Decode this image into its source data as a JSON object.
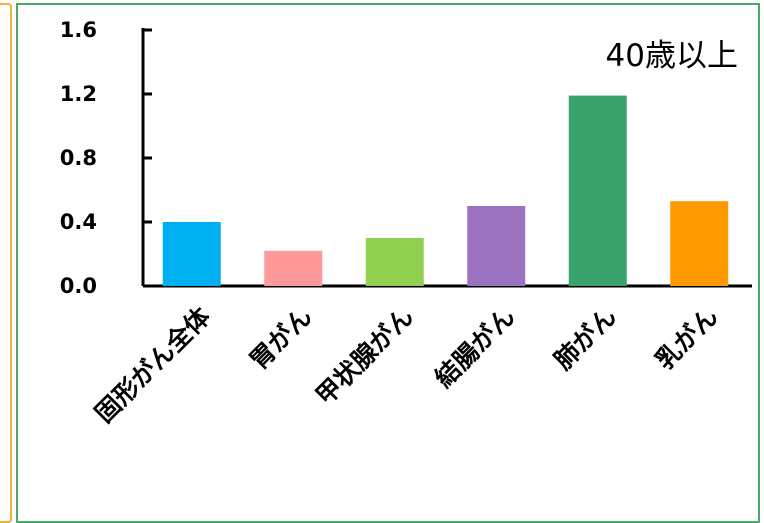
{
  "chart_data": {
    "type": "bar",
    "annotation": "40歳以上",
    "categories": [
      "固形がん全体",
      "胃がん",
      "甲状腺がん",
      "結腸がん",
      "肺がん",
      "乳がん"
    ],
    "values": [
      0.4,
      0.22,
      0.3,
      0.5,
      1.19,
      0.53
    ],
    "colors": [
      "#00b0f0",
      "#ff9999",
      "#92d050",
      "#9b72c0",
      "#3aa36b",
      "#ff9900"
    ],
    "yticks": [
      "0.0",
      "0.4",
      "0.8",
      "1.2",
      "1.6"
    ],
    "ylim": [
      0,
      1.6
    ],
    "grid": false,
    "legend": "none"
  }
}
